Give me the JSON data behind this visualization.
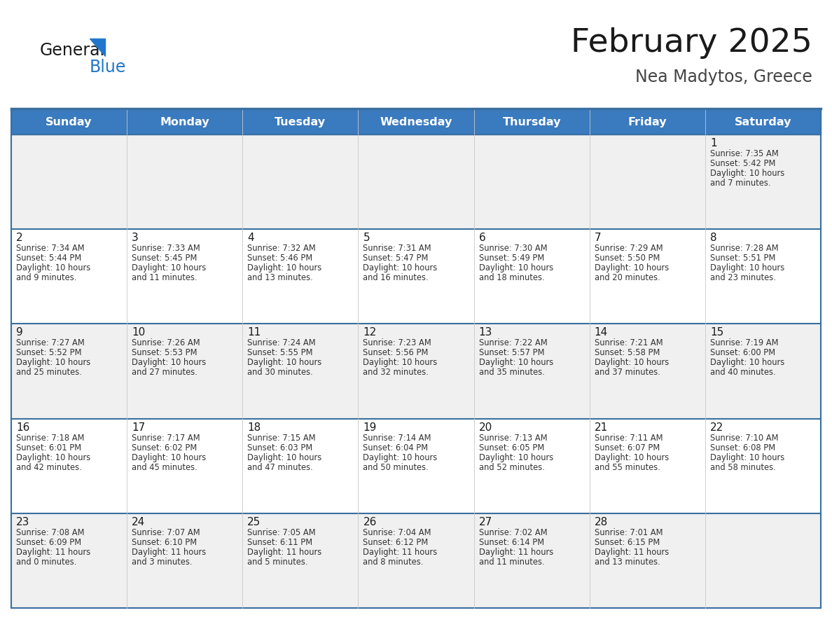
{
  "title": "February 2025",
  "subtitle": "Nea Madytos, Greece",
  "header_bg": "#3a7abf",
  "header_text_color": "#ffffff",
  "day_names": [
    "Sunday",
    "Monday",
    "Tuesday",
    "Wednesday",
    "Thursday",
    "Friday",
    "Saturday"
  ],
  "cell_bg_even": "#f0f0f0",
  "cell_bg_odd": "#ffffff",
  "cell_border_color": "#3a6fa0",
  "number_color": "#1a1a1a",
  "text_color": "#333333",
  "logo_text1": "General",
  "logo_text2": "Blue",
  "logo_color1": "#1a1a1a",
  "logo_color2": "#2277cc",
  "logo_tri_color": "#2277cc",
  "days": [
    {
      "day": 1,
      "col": 6,
      "row": 0,
      "sunrise": "7:35 AM",
      "sunset": "5:42 PM",
      "daylight": "10 hours and 7 minutes."
    },
    {
      "day": 2,
      "col": 0,
      "row": 1,
      "sunrise": "7:34 AM",
      "sunset": "5:44 PM",
      "daylight": "10 hours and 9 minutes."
    },
    {
      "day": 3,
      "col": 1,
      "row": 1,
      "sunrise": "7:33 AM",
      "sunset": "5:45 PM",
      "daylight": "10 hours and 11 minutes."
    },
    {
      "day": 4,
      "col": 2,
      "row": 1,
      "sunrise": "7:32 AM",
      "sunset": "5:46 PM",
      "daylight": "10 hours and 13 minutes."
    },
    {
      "day": 5,
      "col": 3,
      "row": 1,
      "sunrise": "7:31 AM",
      "sunset": "5:47 PM",
      "daylight": "10 hours and 16 minutes."
    },
    {
      "day": 6,
      "col": 4,
      "row": 1,
      "sunrise": "7:30 AM",
      "sunset": "5:49 PM",
      "daylight": "10 hours and 18 minutes."
    },
    {
      "day": 7,
      "col": 5,
      "row": 1,
      "sunrise": "7:29 AM",
      "sunset": "5:50 PM",
      "daylight": "10 hours and 20 minutes."
    },
    {
      "day": 8,
      "col": 6,
      "row": 1,
      "sunrise": "7:28 AM",
      "sunset": "5:51 PM",
      "daylight": "10 hours and 23 minutes."
    },
    {
      "day": 9,
      "col": 0,
      "row": 2,
      "sunrise": "7:27 AM",
      "sunset": "5:52 PM",
      "daylight": "10 hours and 25 minutes."
    },
    {
      "day": 10,
      "col": 1,
      "row": 2,
      "sunrise": "7:26 AM",
      "sunset": "5:53 PM",
      "daylight": "10 hours and 27 minutes."
    },
    {
      "day": 11,
      "col": 2,
      "row": 2,
      "sunrise": "7:24 AM",
      "sunset": "5:55 PM",
      "daylight": "10 hours and 30 minutes."
    },
    {
      "day": 12,
      "col": 3,
      "row": 2,
      "sunrise": "7:23 AM",
      "sunset": "5:56 PM",
      "daylight": "10 hours and 32 minutes."
    },
    {
      "day": 13,
      "col": 4,
      "row": 2,
      "sunrise": "7:22 AM",
      "sunset": "5:57 PM",
      "daylight": "10 hours and 35 minutes."
    },
    {
      "day": 14,
      "col": 5,
      "row": 2,
      "sunrise": "7:21 AM",
      "sunset": "5:58 PM",
      "daylight": "10 hours and 37 minutes."
    },
    {
      "day": 15,
      "col": 6,
      "row": 2,
      "sunrise": "7:19 AM",
      "sunset": "6:00 PM",
      "daylight": "10 hours and 40 minutes."
    },
    {
      "day": 16,
      "col": 0,
      "row": 3,
      "sunrise": "7:18 AM",
      "sunset": "6:01 PM",
      "daylight": "10 hours and 42 minutes."
    },
    {
      "day": 17,
      "col": 1,
      "row": 3,
      "sunrise": "7:17 AM",
      "sunset": "6:02 PM",
      "daylight": "10 hours and 45 minutes."
    },
    {
      "day": 18,
      "col": 2,
      "row": 3,
      "sunrise": "7:15 AM",
      "sunset": "6:03 PM",
      "daylight": "10 hours and 47 minutes."
    },
    {
      "day": 19,
      "col": 3,
      "row": 3,
      "sunrise": "7:14 AM",
      "sunset": "6:04 PM",
      "daylight": "10 hours and 50 minutes."
    },
    {
      "day": 20,
      "col": 4,
      "row": 3,
      "sunrise": "7:13 AM",
      "sunset": "6:05 PM",
      "daylight": "10 hours and 52 minutes."
    },
    {
      "day": 21,
      "col": 5,
      "row": 3,
      "sunrise": "7:11 AM",
      "sunset": "6:07 PM",
      "daylight": "10 hours and 55 minutes."
    },
    {
      "day": 22,
      "col": 6,
      "row": 3,
      "sunrise": "7:10 AM",
      "sunset": "6:08 PM",
      "daylight": "10 hours and 58 minutes."
    },
    {
      "day": 23,
      "col": 0,
      "row": 4,
      "sunrise": "7:08 AM",
      "sunset": "6:09 PM",
      "daylight": "11 hours and 0 minutes."
    },
    {
      "day": 24,
      "col": 1,
      "row": 4,
      "sunrise": "7:07 AM",
      "sunset": "6:10 PM",
      "daylight": "11 hours and 3 minutes."
    },
    {
      "day": 25,
      "col": 2,
      "row": 4,
      "sunrise": "7:05 AM",
      "sunset": "6:11 PM",
      "daylight": "11 hours and 5 minutes."
    },
    {
      "day": 26,
      "col": 3,
      "row": 4,
      "sunrise": "7:04 AM",
      "sunset": "6:12 PM",
      "daylight": "11 hours and 8 minutes."
    },
    {
      "day": 27,
      "col": 4,
      "row": 4,
      "sunrise": "7:02 AM",
      "sunset": "6:14 PM",
      "daylight": "11 hours and 11 minutes."
    },
    {
      "day": 28,
      "col": 5,
      "row": 4,
      "sunrise": "7:01 AM",
      "sunset": "6:15 PM",
      "daylight": "11 hours and 13 minutes."
    }
  ]
}
